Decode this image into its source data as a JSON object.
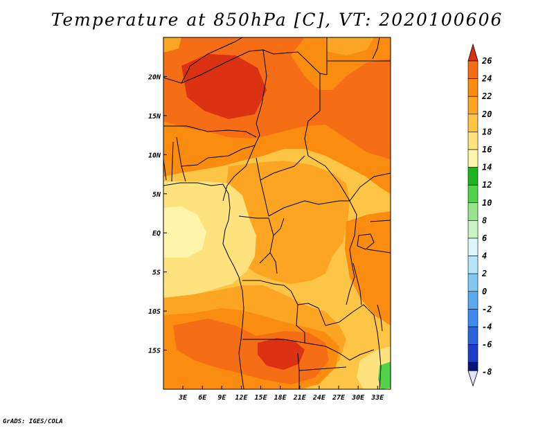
{
  "title": "Temperature at 850hPa [C], VT: 2020100606",
  "credit": "GrADS: IGES/COLA",
  "map": {
    "lon_range": [
      0,
      35
    ],
    "lat_range": [
      -20,
      25
    ],
    "lon_ticks": [
      {
        "lon": 3,
        "label": "3E"
      },
      {
        "lon": 6,
        "label": "6E"
      },
      {
        "lon": 9,
        "label": "9E"
      },
      {
        "lon": 12,
        "label": "12E"
      },
      {
        "lon": 15,
        "label": "15E"
      },
      {
        "lon": 18,
        "label": "18E"
      },
      {
        "lon": 21,
        "label": "21E"
      },
      {
        "lon": 24,
        "label": "24E"
      },
      {
        "lon": 27,
        "label": "27E"
      },
      {
        "lon": 30,
        "label": "30E"
      },
      {
        "lon": 33,
        "label": "33E"
      }
    ],
    "lat_ticks": [
      {
        "lat": 20,
        "label": "20N"
      },
      {
        "lat": 15,
        "label": "15N"
      },
      {
        "lat": 10,
        "label": "10N"
      },
      {
        "lat": 5,
        "label": "5N"
      },
      {
        "lat": 0,
        "label": "EQ"
      },
      {
        "lat": -5,
        "label": "5S"
      },
      {
        "lat": -10,
        "label": "10S"
      },
      {
        "lat": -15,
        "label": "15S"
      }
    ]
  },
  "colorbar": {
    "levels": [
      {
        "label": "26",
        "color": "#f0501e"
      },
      {
        "label": "24",
        "color": "#f56d14"
      },
      {
        "label": "22",
        "color": "#fa8c0f"
      },
      {
        "label": "20",
        "color": "#fca523"
      },
      {
        "label": "18",
        "color": "#fdc546"
      },
      {
        "label": "16",
        "color": "#fde27d"
      },
      {
        "label": "14",
        "color": "#fff5aa"
      },
      {
        "label": "12",
        "color": "#1eb41e"
      },
      {
        "label": "10",
        "color": "#50d24b"
      },
      {
        "label": "8",
        "color": "#96e68c"
      },
      {
        "label": "6",
        "color": "#c8f5c3"
      },
      {
        "label": "4",
        "color": "#dcf5fa"
      },
      {
        "label": "2",
        "color": "#b4e6fa"
      },
      {
        "label": "0",
        "color": "#82c8f5"
      },
      {
        "label": "-2",
        "color": "#5aaaf0"
      },
      {
        "label": "-4",
        "color": "#3c8cf0"
      },
      {
        "label": "-6",
        "color": "#2864dc"
      },
      {
        "label": "-8",
        "color": "#1e3cc8"
      }
    ],
    "top_color": "#dc3214",
    "bottom_color": "#0a147d",
    "under_color": "#e1e1f8"
  },
  "fill_colors": {
    "t14": "#fff5aa",
    "t16": "#fde27d",
    "t18": "#fdc546",
    "t20": "#fca523",
    "t22": "#fa8c0f",
    "t24": "#f56d14",
    "t26": "#dc3214",
    "green": "#50d24b"
  }
}
